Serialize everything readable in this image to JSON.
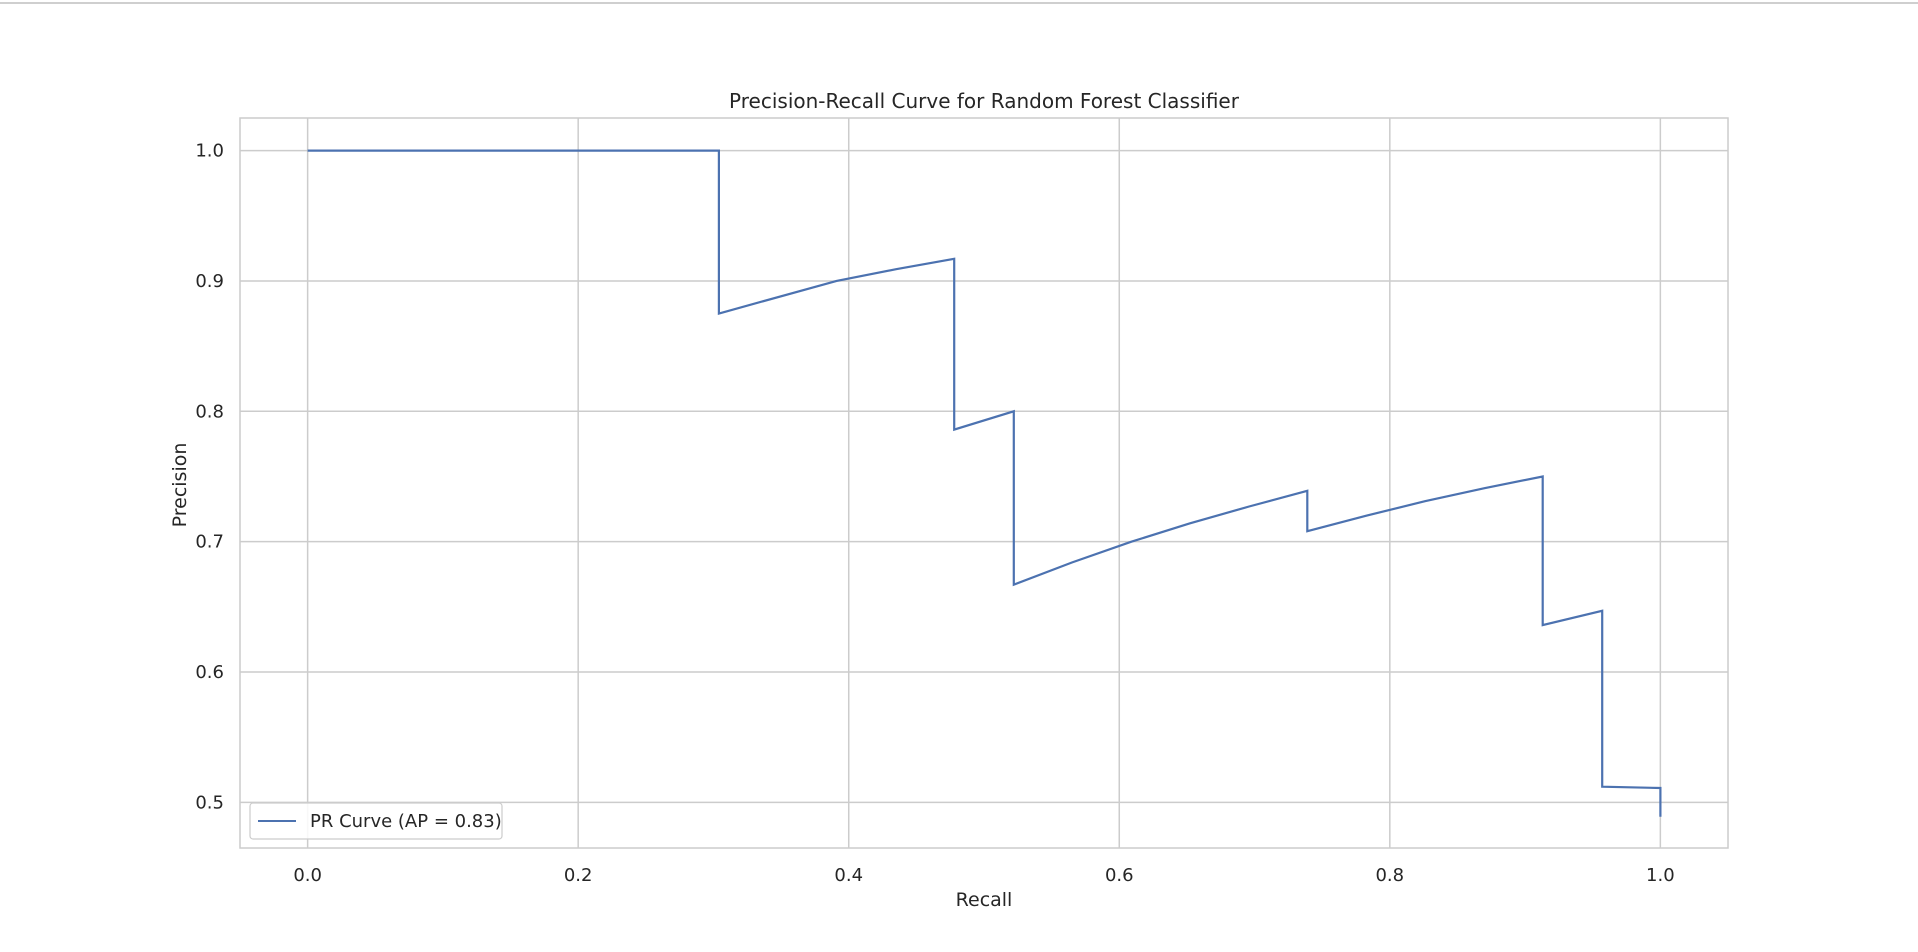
{
  "chart_data": {
    "type": "line",
    "title": "Precision-Recall Curve for Random Forest Classifier",
    "xlabel": "Recall",
    "ylabel": "Precision",
    "xlim": [
      -0.05,
      1.05
    ],
    "ylim": [
      0.465,
      1.025
    ],
    "xticks": [
      0.0,
      0.2,
      0.4,
      0.6,
      0.8,
      1.0
    ],
    "xtick_labels": [
      "0.0",
      "0.2",
      "0.4",
      "0.6",
      "0.8",
      "1.0"
    ],
    "yticks": [
      0.5,
      0.6,
      0.7,
      0.8,
      0.9,
      1.0
    ],
    "ytick_labels": [
      "0.5",
      "0.6",
      "0.7",
      "0.8",
      "0.9",
      "1.0"
    ],
    "grid": true,
    "legend_position": "lower-left",
    "series": [
      {
        "name": "PR Curve (AP = 0.83)",
        "color": "#4c72b0",
        "x": [
          0.0,
          0.304,
          0.304,
          0.391,
          0.435,
          0.478,
          0.478,
          0.522,
          0.522,
          0.565,
          0.609,
          0.652,
          0.696,
          0.739,
          0.739,
          0.783,
          0.826,
          0.87,
          0.913,
          0.913,
          0.957,
          0.957,
          1.0,
          1.0
        ],
        "y": [
          1.0,
          1.0,
          0.875,
          0.9,
          0.909,
          0.917,
          0.786,
          0.8,
          0.667,
          0.684,
          0.7,
          0.714,
          0.727,
          0.739,
          0.708,
          0.72,
          0.731,
          0.741,
          0.75,
          0.636,
          0.647,
          0.512,
          0.511,
          0.489
        ]
      }
    ]
  },
  "colors": {
    "grid": "#cccccc",
    "frame": "#cccccc",
    "text": "#262626",
    "line": "#4c72b0"
  }
}
